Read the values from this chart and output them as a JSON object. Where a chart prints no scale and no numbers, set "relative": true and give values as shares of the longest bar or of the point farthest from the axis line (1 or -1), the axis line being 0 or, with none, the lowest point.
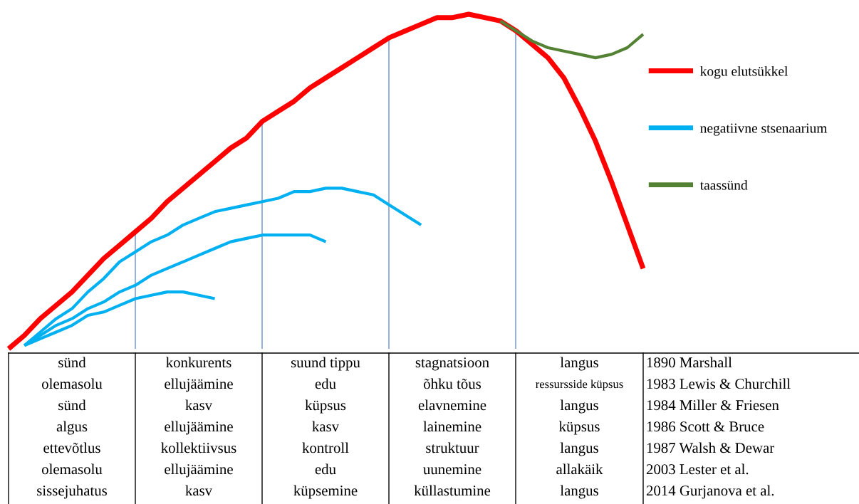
{
  "chart_data": {
    "type": "line",
    "relative": true,
    "legend": "right",
    "categories": [
      null,
      null,
      null,
      null,
      null,
      null,
      null,
      null,
      null,
      null,
      null,
      null,
      null,
      null,
      null,
      null,
      null,
      null,
      null,
      null,
      null,
      null,
      null,
      null,
      null,
      null,
      null,
      null,
      null,
      null,
      null,
      null,
      null,
      null,
      null,
      null,
      null,
      null,
      null,
      null,
      null
    ],
    "series": [
      {
        "name": "kogu elutsükkel",
        "color": "#ff0000",
        "values": [
          0,
          0.04,
          0.09,
          0.13,
          0.17,
          0.22,
          0.27,
          0.31,
          0.35,
          0.39,
          0.44,
          0.48,
          0.52,
          0.56,
          0.6,
          0.63,
          0.68,
          0.71,
          0.74,
          0.78,
          0.81,
          0.84,
          0.87,
          0.9,
          0.93,
          0.95,
          0.97,
          0.99,
          0.99,
          1,
          0.99,
          0.98,
          0.95,
          0.91,
          0.87,
          0.81,
          0.72,
          0.62,
          0.5,
          0.37,
          0.24
        ]
      },
      {
        "name": "negatiivne stsenaarium",
        "color": "#00b0f0",
        "values": [
          null,
          0.01,
          0.05,
          0.09,
          0.12,
          0.17,
          0.21,
          0.26,
          0.29,
          0.32,
          0.34,
          0.37,
          0.39,
          0.41,
          0.42,
          0.43,
          0.44,
          0.45,
          0.47,
          0.47,
          0.48,
          0.48,
          0.47,
          0.46,
          0.43,
          0.4,
          0.37,
          null,
          null,
          null,
          null,
          null,
          null,
          null,
          null,
          null,
          null,
          null,
          null,
          null,
          null
        ]
      },
      {
        "color": "#00b0f0",
        "values": [
          null,
          0.01,
          0.04,
          0.07,
          0.09,
          0.12,
          0.14,
          0.17,
          0.19,
          0.22,
          0.24,
          0.26,
          0.28,
          0.3,
          0.32,
          0.33,
          0.34,
          0.34,
          0.34,
          0.34,
          0.32,
          null,
          null,
          null,
          null,
          null,
          null,
          null,
          null,
          null,
          null,
          null,
          null,
          null,
          null,
          null,
          null,
          null,
          null,
          null,
          null
        ]
      },
      {
        "color": "#00b0f0",
        "values": [
          null,
          0.01,
          0.03,
          0.05,
          0.07,
          0.1,
          0.11,
          0.13,
          0.15,
          0.16,
          0.17,
          0.17,
          0.16,
          0.15,
          null,
          null,
          null,
          null,
          null,
          null,
          null,
          null,
          null,
          null,
          null,
          null,
          null,
          null,
          null,
          null,
          null,
          null,
          null,
          null,
          null,
          null,
          null,
          null,
          null,
          null,
          null
        ]
      },
      {
        "name": "taassünd",
        "color": "#548235",
        "values": [
          null,
          null,
          null,
          null,
          null,
          null,
          null,
          null,
          null,
          null,
          null,
          null,
          null,
          null,
          null,
          null,
          null,
          null,
          null,
          null,
          null,
          null,
          null,
          null,
          null,
          null,
          null,
          null,
          null,
          null,
          null,
          0.98,
          0.95,
          0.92,
          0.9,
          0.89,
          0.88,
          0.87,
          0.88,
          0.9,
          0.94
        ]
      }
    ],
    "annotations": [
      "sünd",
      "konkurents",
      "suund tippu",
      "stagnatsioon",
      "langus",
      "1890 Marshall",
      "olemasolu",
      "ellujäämine",
      "edu",
      "õhku tõus",
      "ressursside küpsus",
      "1983 Lewis & Churchill",
      "sünd",
      "kasv",
      "küpsus",
      "elavnemine",
      "langus",
      "1984 Miller & Friesen",
      "algus",
      "ellujäämine",
      "kasv",
      "lainemine",
      "küpsus",
      "1986 Scott & Bruce",
      "ettevõtlus",
      "kollektiivsus",
      "kontroll",
      "struktuur",
      "langus",
      "1987 Walsh & Dewar",
      "olemasolu",
      "ellujäämine",
      "edu",
      "uunemine",
      "allakäik",
      "2003 Lester et al.",
      "sissejuhatus",
      "kasv",
      "küpsemine",
      "küllastumine",
      "langus",
      "2014 Gurjanova et al."
    ]
  }
}
